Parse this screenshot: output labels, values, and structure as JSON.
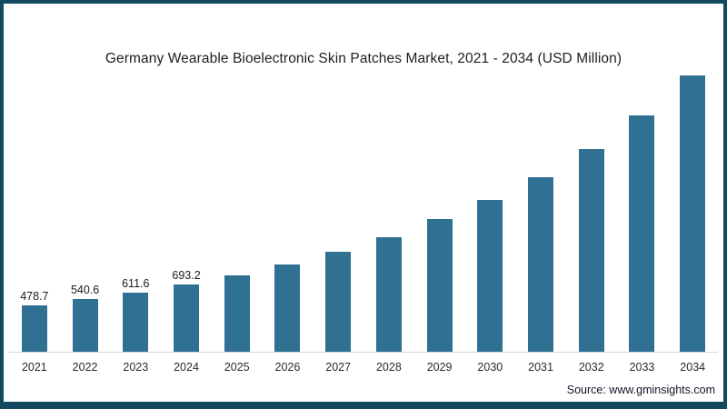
{
  "frame": {
    "border_color": "#134a5f",
    "background": "#ffffff"
  },
  "title": "Germany Wearable Bioelectronic Skin Patches Market, 2021 - 2034 (USD Million)",
  "source_credit": "Source: www.gminsights.com",
  "colors": {
    "bar": "#2f7093",
    "axis_line": "#d8d8d8",
    "title_text": "#202020",
    "tick_text": "#2b2b2b"
  },
  "chart_data": {
    "type": "bar",
    "title": "Germany Wearable Bioelectronic Skin Patches Market, 2021 - 2034 (USD Million)",
    "units": "USD Million",
    "categories": [
      "2021",
      "2022",
      "2023",
      "2024",
      "2025",
      "2026",
      "2027",
      "2028",
      "2029",
      "2030",
      "2031",
      "2032",
      "2033",
      "2034"
    ],
    "values": [
      478.7,
      540.6,
      611.6,
      693.2,
      785,
      900,
      1030,
      1185,
      1370,
      1565,
      1805,
      2090,
      2435,
      2850
    ],
    "data_labels": [
      "478.7",
      "540.6",
      "611.6",
      "693.2",
      "",
      "",
      "",
      "",
      "",
      "",
      "",
      "",
      "",
      ""
    ],
    "ylim": [
      0,
      2900
    ],
    "grid": false,
    "legend": false,
    "xlabel": "",
    "ylabel": ""
  }
}
